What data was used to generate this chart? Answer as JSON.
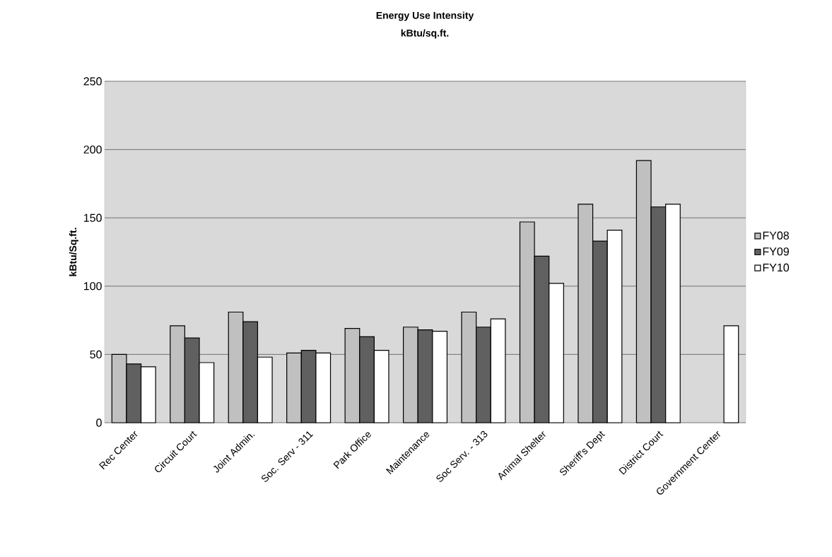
{
  "chart_data": {
    "type": "bar",
    "title": "Energy Use Intensity",
    "subtitle": "kBtu/sq.ft.",
    "ylabel": "kBtu/Sq.ft.",
    "categories": [
      "Rec Center",
      "Circuit Court",
      "Joint Admin.",
      "Soc. Serv - 311",
      "Park Office",
      "Maintenance",
      "Soc Serv. - 313",
      "Animal Shelter",
      "Sheriff's Dept",
      "District Court",
      "Government Center"
    ],
    "series": [
      {
        "name": "FY08",
        "color": "#c0c0c0",
        "values": [
          50,
          71,
          81,
          51,
          69,
          70,
          81,
          147,
          160,
          192,
          null
        ]
      },
      {
        "name": "FY09",
        "color": "#606060",
        "values": [
          43,
          62,
          74,
          53,
          63,
          68,
          70,
          122,
          133,
          158,
          null
        ]
      },
      {
        "name": "FY10",
        "color": "#ffffff",
        "values": [
          41,
          44,
          48,
          51,
          53,
          67,
          76,
          102,
          141,
          160,
          71
        ]
      }
    ],
    "ylim": [
      0,
      250
    ],
    "yticks": [
      0,
      50,
      100,
      150,
      200,
      250
    ],
    "grid": "y",
    "legend": "right"
  }
}
